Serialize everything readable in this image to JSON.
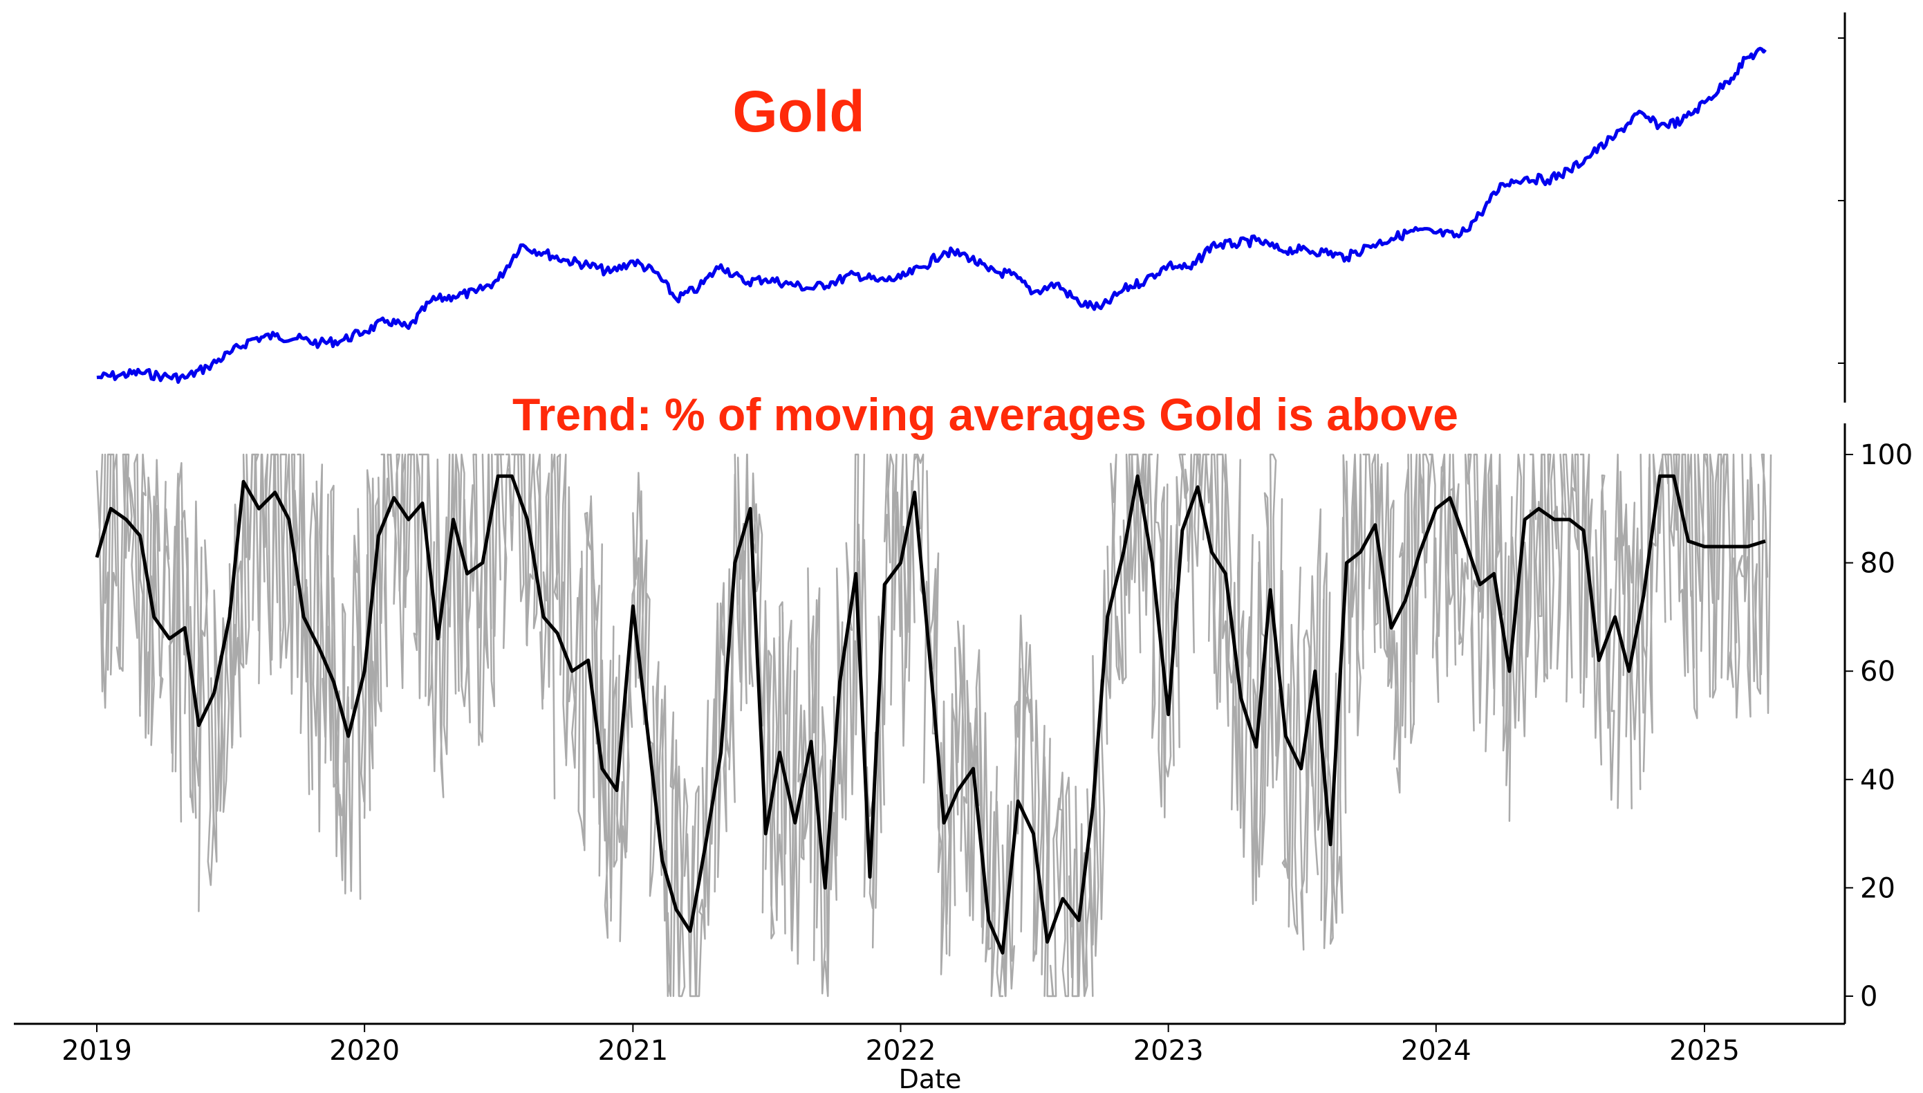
{
  "chart_data": [
    {
      "type": "line",
      "title": "Gold",
      "title_color": "#ff2a0a",
      "series": [
        {
          "color": "#0000ee",
          "x": [
            "2019-01-01",
            "2019-02-01",
            "2019-03-01",
            "2019-04-01",
            "2019-05-01",
            "2019-06-01",
            "2019-07-01",
            "2019-08-01",
            "2019-09-01",
            "2019-10-01",
            "2019-11-01",
            "2019-12-01",
            "2020-01-01",
            "2020-02-01",
            "2020-03-01",
            "2020-04-01",
            "2020-05-01",
            "2020-06-01",
            "2020-07-01",
            "2020-08-01",
            "2020-09-01",
            "2020-10-01",
            "2020-11-01",
            "2020-12-01",
            "2021-01-01",
            "2021-02-01",
            "2021-03-01",
            "2021-04-01",
            "2021-05-01",
            "2021-06-01",
            "2021-07-01",
            "2021-08-01",
            "2021-09-01",
            "2021-10-01",
            "2021-11-01",
            "2021-12-01",
            "2022-01-01",
            "2022-02-01",
            "2022-03-01",
            "2022-04-01",
            "2022-05-01",
            "2022-06-01",
            "2022-07-01",
            "2022-08-01",
            "2022-09-01",
            "2022-10-01",
            "2022-11-01",
            "2022-12-01",
            "2023-01-01",
            "2023-02-01",
            "2023-03-01",
            "2023-04-01",
            "2023-05-01",
            "2023-06-01",
            "2023-07-01",
            "2023-08-01",
            "2023-09-01",
            "2023-10-01",
            "2023-11-01",
            "2023-12-01",
            "2024-01-01",
            "2024-02-01",
            "2024-03-01",
            "2024-04-01",
            "2024-05-01",
            "2024-06-01",
            "2024-07-01",
            "2024-08-01",
            "2024-09-01",
            "2024-10-01",
            "2024-11-01",
            "2024-12-01",
            "2025-01-01",
            "2025-02-01",
            "2025-03-01",
            "2025-03-25"
          ],
          "values": [
            1284,
            1296,
            1310,
            1290,
            1282,
            1340,
            1412,
            1488,
            1505,
            1490,
            1465,
            1480,
            1528,
            1585,
            1545,
            1690,
            1715,
            1735,
            1800,
            1985,
            1945,
            1905,
            1880,
            1840,
            1900,
            1840,
            1700,
            1760,
            1880,
            1790,
            1805,
            1780,
            1755,
            1790,
            1830,
            1795,
            1810,
            1870,
            1950,
            1930,
            1850,
            1830,
            1735,
            1780,
            1680,
            1650,
            1750,
            1800,
            1880,
            1860,
            1985,
            1990,
            2010,
            1960,
            1960,
            1950,
            1920,
            1980,
            2020,
            2060,
            2050,
            2030,
            2150,
            2310,
            2340,
            2330,
            2380,
            2470,
            2560,
            2680,
            2620,
            2640,
            2740,
            2850,
            2980,
            3020
          ]
        }
      ],
      "ylim": [
        1250,
        3100
      ]
    },
    {
      "type": "line",
      "title": "Trend: % of moving averages Gold is above",
      "title_color": "#ff2a0a",
      "xlabel": "Date",
      "ylabel": "",
      "ylim": [
        0,
        100
      ],
      "yticks": [
        0,
        20,
        40,
        60,
        80,
        100
      ],
      "xticks": [
        "2019",
        "2020",
        "2021",
        "2022",
        "2023",
        "2024",
        "2025"
      ],
      "series": [
        {
          "color": "#000000",
          "x": [
            "2019-01-01",
            "2019-01-20",
            "2019-02-10",
            "2019-03-01",
            "2019-03-20",
            "2019-04-10",
            "2019-05-01",
            "2019-05-20",
            "2019-06-10",
            "2019-07-01",
            "2019-07-20",
            "2019-08-10",
            "2019-09-01",
            "2019-09-20",
            "2019-10-10",
            "2019-11-01",
            "2019-11-20",
            "2019-12-10",
            "2020-01-01",
            "2020-01-20",
            "2020-02-10",
            "2020-03-01",
            "2020-03-20",
            "2020-04-10",
            "2020-05-01",
            "2020-05-20",
            "2020-06-10",
            "2020-07-01",
            "2020-07-20",
            "2020-08-10",
            "2020-09-01",
            "2020-09-20",
            "2020-10-10",
            "2020-11-01",
            "2020-11-20",
            "2020-12-10",
            "2021-01-01",
            "2021-01-20",
            "2021-02-10",
            "2021-03-01",
            "2021-03-20",
            "2021-04-10",
            "2021-05-01",
            "2021-05-20",
            "2021-06-10",
            "2021-07-01",
            "2021-07-20",
            "2021-08-10",
            "2021-09-01",
            "2021-09-20",
            "2021-10-10",
            "2021-11-01",
            "2021-11-20",
            "2021-12-10",
            "2022-01-01",
            "2022-01-20",
            "2022-02-10",
            "2022-03-01",
            "2022-03-20",
            "2022-04-10",
            "2022-05-01",
            "2022-05-20",
            "2022-06-10",
            "2022-07-01",
            "2022-07-20",
            "2022-08-10",
            "2022-09-01",
            "2022-09-20",
            "2022-10-10",
            "2022-11-01",
            "2022-11-20",
            "2022-12-10",
            "2023-01-01",
            "2023-01-20",
            "2023-02-10",
            "2023-03-01",
            "2023-03-20",
            "2023-04-10",
            "2023-05-01",
            "2023-05-20",
            "2023-06-10",
            "2023-07-01",
            "2023-07-20",
            "2023-08-10",
            "2023-09-01",
            "2023-09-20",
            "2023-10-10",
            "2023-11-01",
            "2023-11-20",
            "2023-12-10",
            "2024-01-01",
            "2024-01-20",
            "2024-02-10",
            "2024-03-01",
            "2024-03-20",
            "2024-04-10",
            "2024-05-01",
            "2024-05-20",
            "2024-06-10",
            "2024-07-01",
            "2024-07-20",
            "2024-08-10",
            "2024-09-01",
            "2024-09-20",
            "2024-10-10",
            "2024-11-01",
            "2024-11-20",
            "2024-12-10",
            "2025-01-01",
            "2025-01-20",
            "2025-02-10",
            "2025-03-01",
            "2025-03-25"
          ],
          "values": [
            81,
            90,
            88,
            85,
            70,
            66,
            68,
            50,
            56,
            70,
            95,
            90,
            93,
            88,
            70,
            64,
            58,
            48,
            60,
            85,
            92,
            88,
            91,
            66,
            88,
            78,
            80,
            96,
            96,
            88,
            70,
            67,
            60,
            62,
            42,
            38,
            72,
            50,
            25,
            16,
            12,
            28,
            45,
            80,
            90,
            30,
            45,
            32,
            47,
            20,
            58,
            78,
            22,
            76,
            80,
            93,
            62,
            32,
            38,
            42,
            14,
            8,
            36,
            30,
            10,
            18,
            14,
            35,
            70,
            82,
            96,
            80,
            52,
            86,
            94,
            82,
            78,
            55,
            46,
            75,
            48,
            42,
            60,
            28,
            80,
            82,
            87,
            68,
            73,
            82,
            90,
            92,
            84,
            76,
            78,
            60,
            88,
            90,
            88,
            88,
            86,
            62,
            70,
            60,
            74,
            96,
            96,
            84,
            83,
            83,
            83,
            83,
            84
          ]
        }
      ]
    }
  ]
}
